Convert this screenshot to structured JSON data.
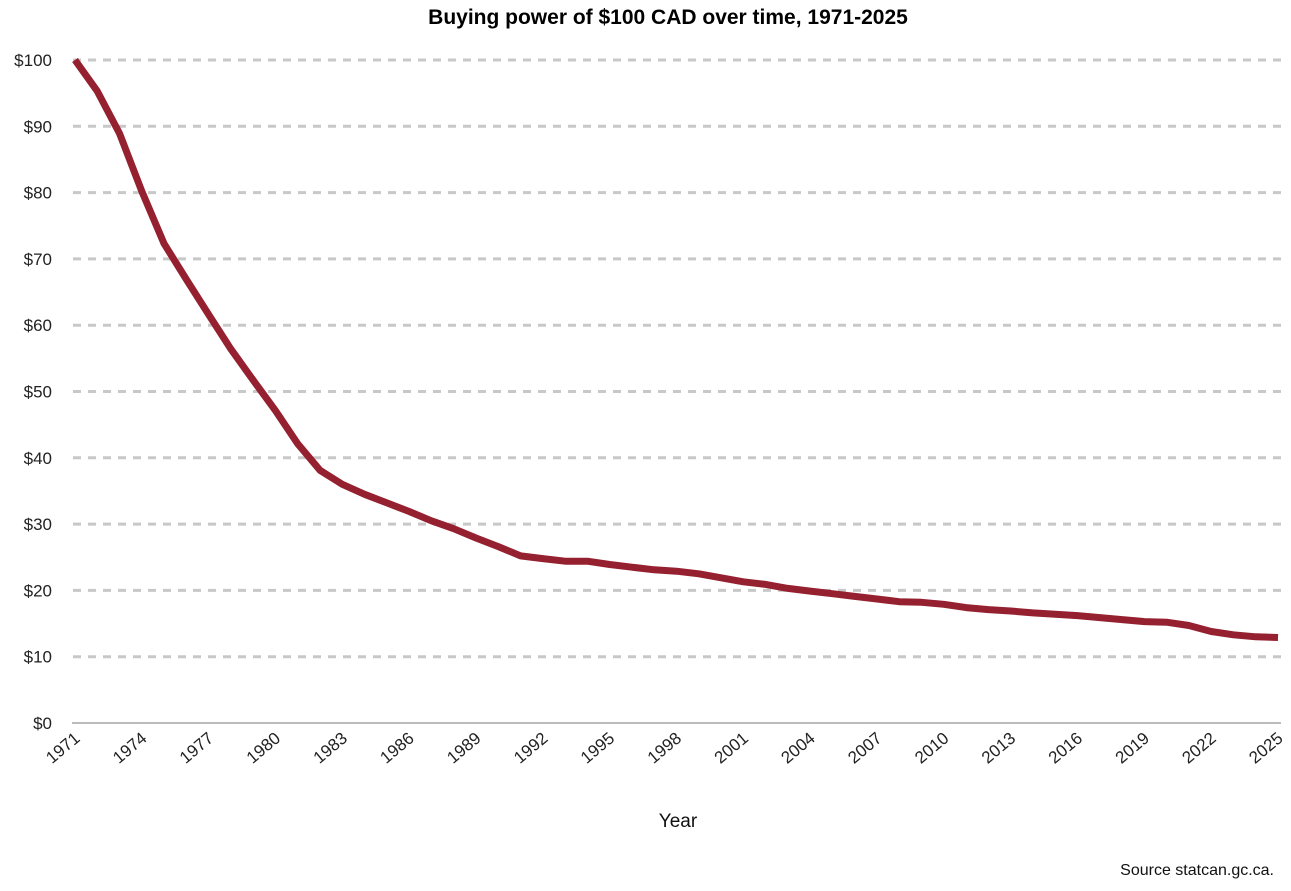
{
  "chart_data": {
    "type": "line",
    "title": "Buying power of $100 CAD over time, 1971-2025",
    "xlabel": "Year",
    "ylabel": "",
    "source": "Source statcan.gc.ca.",
    "xlim": [
      1971,
      2025
    ],
    "ylim": [
      0,
      100
    ],
    "grid": true,
    "line_color": "#95202f",
    "grid_color": "#c8c8c8",
    "y_ticks": [
      "$0",
      "$10",
      "$20",
      "$30",
      "$40",
      "$50",
      "$60",
      "$70",
      "$80",
      "$90",
      "$100"
    ],
    "x_ticks": [
      "1971",
      "1974",
      "1977",
      "1980",
      "1983",
      "1986",
      "1989",
      "1992",
      "1995",
      "1998",
      "2001",
      "2004",
      "2007",
      "2010",
      "2013",
      "2016",
      "2019",
      "2022",
      "2025"
    ],
    "series": [
      {
        "x": [
          1971,
          1972,
          1973,
          1974,
          1975,
          1976,
          1977,
          1978,
          1979,
          1980,
          1981,
          1982,
          1983,
          1984,
          1985,
          1986,
          1987,
          1988,
          1989,
          1990,
          1991,
          1992,
          1993,
          1994,
          1995,
          1996,
          1997,
          1998,
          1999,
          2000,
          2001,
          2002,
          2003,
          2004,
          2005,
          2006,
          2007,
          2008,
          2009,
          2010,
          2011,
          2012,
          2013,
          2014,
          2015,
          2016,
          2017,
          2018,
          2019,
          2020,
          2021,
          2022,
          2023,
          2024,
          2025
        ],
        "values": [
          100,
          95.3,
          88.9,
          80.2,
          72.3,
          66.9,
          61.6,
          56.4,
          51.7,
          47.1,
          42.1,
          38.1,
          36.0,
          34.5,
          33.2,
          31.9,
          30.5,
          29.3,
          27.9,
          26.6,
          25.2,
          24.8,
          24.4,
          24.4,
          23.9,
          23.5,
          23.1,
          22.9,
          22.5,
          21.9,
          21.3,
          20.9,
          20.3,
          19.9,
          19.5,
          19.1,
          18.7,
          18.3,
          18.2,
          17.9,
          17.4,
          17.1,
          16.9,
          16.6,
          16.4,
          16.2,
          15.9,
          15.6,
          15.3,
          15.2,
          14.7,
          13.8,
          13.3,
          13.0,
          12.9
        ]
      }
    ]
  }
}
